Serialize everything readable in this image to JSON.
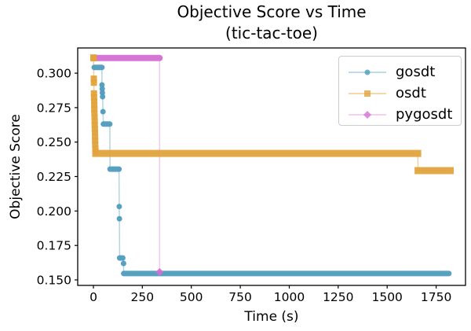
{
  "chart_data": {
    "type": "line",
    "title": "Objective Score vs Time",
    "subtitle": "(tic-tac-toe)",
    "xlabel": "Time (s)",
    "ylabel": "Objective Score",
    "xlim": [
      -80,
      1900
    ],
    "ylim": [
      0.146,
      0.3183
    ],
    "grid": false,
    "legend_position": "upper right",
    "xticks": [
      {
        "v": 0,
        "label": "0"
      },
      {
        "v": 250,
        "label": "250"
      },
      {
        "v": 500,
        "label": "500"
      },
      {
        "v": 750,
        "label": "750"
      },
      {
        "v": 1000,
        "label": "1000"
      },
      {
        "v": 1250,
        "label": "1250"
      },
      {
        "v": 1500,
        "label": "1500"
      },
      {
        "v": 1750,
        "label": "1750"
      }
    ],
    "yticks": [
      {
        "v": 0.15,
        "label": "0.150"
      },
      {
        "v": 0.175,
        "label": "0.175"
      },
      {
        "v": 0.2,
        "label": "0.200"
      },
      {
        "v": 0.225,
        "label": "0.225"
      },
      {
        "v": 0.25,
        "label": "0.250"
      },
      {
        "v": 0.275,
        "label": "0.275"
      },
      {
        "v": 0.3,
        "label": "0.300"
      }
    ],
    "series": [
      {
        "name": "gosdt",
        "marker": "circle",
        "color": "#4f9cbd",
        "line_color": "#b3d5e6",
        "marker_size": 7,
        "run_width": 7,
        "line_path": [
          [
            4,
            0.3042
          ],
          [
            44,
            0.3042
          ],
          [
            44,
            0.2915
          ],
          [
            45,
            0.2886
          ],
          [
            46,
            0.2858
          ],
          [
            47,
            0.2829
          ],
          [
            49,
            0.2721
          ],
          [
            51,
            0.2636
          ],
          [
            84,
            0.2631
          ],
          [
            85,
            0.2304
          ],
          [
            131,
            0.2304
          ],
          [
            132,
            0.2032
          ],
          [
            133,
            0.1944
          ],
          [
            134,
            0.1662
          ],
          [
            150,
            0.1655
          ],
          [
            154,
            0.1619
          ],
          [
            155,
            0.1546
          ],
          [
            1815,
            0.1546
          ]
        ],
        "dense_runs": [
          [
            4,
            44,
            0.3042
          ],
          [
            51,
            84,
            0.2631
          ],
          [
            85,
            131,
            0.2304
          ],
          [
            134,
            150,
            0.1659
          ],
          [
            155,
            1815,
            0.1546
          ]
        ],
        "markers": [
          [
            44,
            0.2915
          ],
          [
            45,
            0.2886
          ],
          [
            46,
            0.2858
          ],
          [
            47,
            0.2829
          ],
          [
            49,
            0.2721
          ],
          [
            132,
            0.2032
          ],
          [
            133,
            0.1944
          ],
          [
            154,
            0.1619
          ]
        ]
      },
      {
        "name": "osdt",
        "marker": "square",
        "color": "#e2a33d",
        "line_color": "#f2d29c",
        "marker_size": 8,
        "run_width": 9,
        "line_path": [
          [
            0,
            0.3114
          ],
          [
            1,
            0.3108
          ],
          [
            2,
            0.296
          ],
          [
            2.5,
            0.2931
          ],
          [
            3,
            0.2853
          ],
          [
            3.5,
            0.2824
          ],
          [
            4,
            0.2796
          ],
          [
            4.5,
            0.2767
          ],
          [
            5,
            0.2739
          ],
          [
            5.5,
            0.271
          ],
          [
            6,
            0.2682
          ],
          [
            6.5,
            0.2653
          ],
          [
            7,
            0.2625
          ],
          [
            7.5,
            0.2596
          ],
          [
            8,
            0.2568
          ],
          [
            8.5,
            0.2539
          ],
          [
            9,
            0.2511
          ],
          [
            9.5,
            0.2482
          ],
          [
            10,
            0.2453
          ],
          [
            11,
            0.243
          ],
          [
            12,
            0.2418
          ],
          [
            1656,
            0.2418
          ],
          [
            1658,
            0.2293
          ],
          [
            1822,
            0.2293
          ]
        ],
        "dense_runs": [
          [
            12,
            1656,
            0.2418
          ],
          [
            1658,
            1822,
            0.2293
          ]
        ],
        "markers": [
          [
            0,
            0.3114
          ],
          [
            1,
            0.3108
          ],
          [
            2,
            0.296
          ],
          [
            2.5,
            0.2931
          ],
          [
            3,
            0.2853
          ],
          [
            3.5,
            0.2824
          ],
          [
            4,
            0.2796
          ],
          [
            4.5,
            0.2767
          ],
          [
            5,
            0.2739
          ],
          [
            5.5,
            0.271
          ],
          [
            6,
            0.2682
          ],
          [
            6.5,
            0.2653
          ],
          [
            7,
            0.2625
          ],
          [
            7.5,
            0.2596
          ],
          [
            8,
            0.2568
          ],
          [
            8.5,
            0.2539
          ],
          [
            9,
            0.2511
          ],
          [
            9.5,
            0.2482
          ],
          [
            10,
            0.2453
          ],
          [
            11,
            0.243
          ]
        ]
      },
      {
        "name": "pygosdt",
        "marker": "diamond",
        "color": "#d470d4",
        "line_color": "#f2c9ef",
        "marker_size": 8,
        "run_width": 8,
        "line_path": [
          [
            0,
            0.311
          ],
          [
            338,
            0.311
          ],
          [
            338,
            0.1557
          ]
        ],
        "dense_runs": [
          [
            0,
            338,
            0.311
          ]
        ],
        "markers": [
          [
            338,
            0.1557
          ]
        ]
      }
    ]
  }
}
